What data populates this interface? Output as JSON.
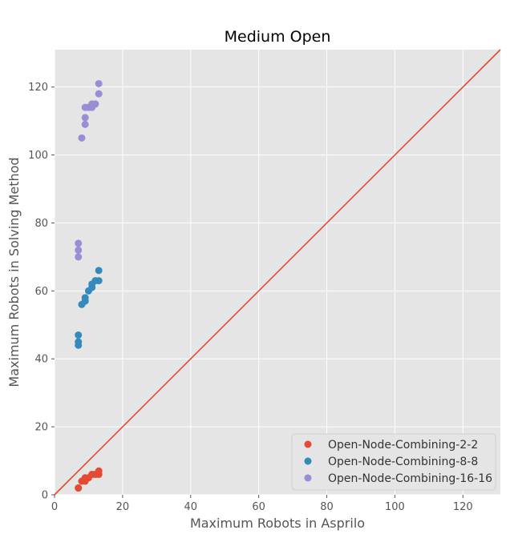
{
  "chart_data": {
    "type": "scatter",
    "title": "Medium Open",
    "xlabel": "Maximum Robots in Asprilo",
    "ylabel": "Maximum Robots in Solving Method",
    "xlim": [
      0,
      131
    ],
    "ylim": [
      0,
      131
    ],
    "xticks": [
      0,
      20,
      40,
      60,
      80,
      100,
      120
    ],
    "yticks": [
      0,
      20,
      40,
      60,
      80,
      100,
      120
    ],
    "grid": true,
    "legend_position": "bottom-right",
    "reference_line": {
      "label": "y = x",
      "color": "#E24A33",
      "points": [
        [
          0,
          0
        ],
        [
          131,
          131
        ]
      ]
    },
    "series": [
      {
        "name": "Open-Node-Combining-2-2",
        "color": "#E24A33",
        "points": [
          [
            7,
            2
          ],
          [
            7,
            2
          ],
          [
            8,
            4
          ],
          [
            9,
            4
          ],
          [
            9,
            5
          ],
          [
            10,
            5
          ],
          [
            11,
            6
          ],
          [
            12,
            6
          ],
          [
            13,
            7
          ],
          [
            13,
            6
          ]
        ]
      },
      {
        "name": "Open-Node-Combining-8-8",
        "color": "#348ABD",
        "points": [
          [
            7,
            44
          ],
          [
            7,
            45
          ],
          [
            7,
            47
          ],
          [
            8,
            56
          ],
          [
            9,
            57
          ],
          [
            9,
            58
          ],
          [
            10,
            60
          ],
          [
            11,
            61
          ],
          [
            11,
            62
          ],
          [
            12,
            63
          ],
          [
            13,
            63
          ],
          [
            13,
            66
          ]
        ]
      },
      {
        "name": "Open-Node-Combining-16-16",
        "color": "#988ED5",
        "points": [
          [
            7,
            70
          ],
          [
            7,
            72
          ],
          [
            7,
            74
          ],
          [
            8,
            105
          ],
          [
            9,
            109
          ],
          [
            9,
            111
          ],
          [
            9,
            114
          ],
          [
            10,
            114
          ],
          [
            11,
            114
          ],
          [
            11,
            115
          ],
          [
            12,
            115
          ],
          [
            13,
            118
          ],
          [
            13,
            121
          ]
        ]
      }
    ]
  }
}
